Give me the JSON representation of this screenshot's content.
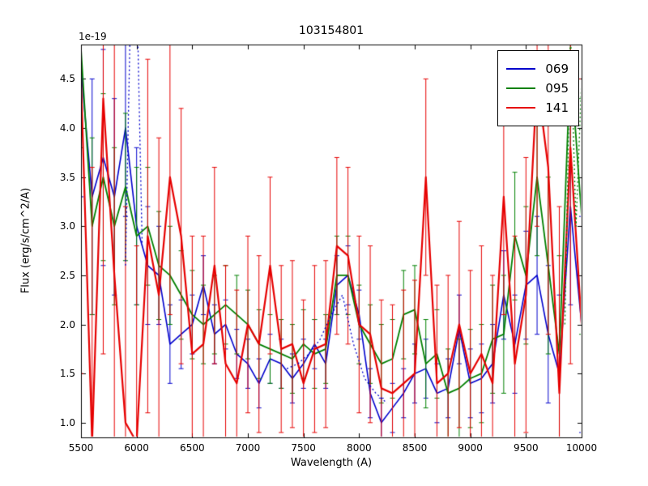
{
  "chart_data": {
    "type": "line",
    "title": "103154801",
    "xlabel": "Wavelength (A)",
    "ylabel": "Flux (erg/s/cm^2/A)",
    "offset_text": "1e-19",
    "xlim": [
      5500,
      10000
    ],
    "ylim": [
      0.85,
      4.85
    ],
    "grid": false,
    "legend_position": "upper right",
    "x_ticks": [
      5500,
      6000,
      6500,
      7000,
      7500,
      8000,
      8500,
      9000,
      9500,
      10000
    ],
    "x_tick_labels": [
      "5500",
      "6000",
      "6500",
      "7000",
      "7500",
      "8000",
      "8500",
      "9000",
      "9500",
      "10000"
    ],
    "y_ticks": [
      1.0,
      1.5,
      2.0,
      2.5,
      3.0,
      3.5,
      4.0,
      4.5
    ],
    "y_tick_labels": [
      "1.0",
      "1.5",
      "2.0",
      "2.5",
      "3.0",
      "3.5",
      "4.0",
      "4.5"
    ],
    "x": [
      5500,
      5600,
      5700,
      5800,
      5900,
      6000,
      6100,
      6200,
      6300,
      6400,
      6500,
      6600,
      6700,
      6800,
      6900,
      7000,
      7100,
      7200,
      7300,
      7400,
      7500,
      7600,
      7700,
      7800,
      7900,
      8000,
      8100,
      8200,
      8300,
      8400,
      8500,
      8600,
      8700,
      8800,
      8900,
      9000,
      9100,
      9200,
      9300,
      9400,
      9500,
      9600,
      9700,
      9800,
      9900,
      10000
    ],
    "series": [
      {
        "name": "069",
        "color": "#0000cc",
        "lw": 1.6,
        "values": [
          4.6,
          3.3,
          3.7,
          3.3,
          4.0,
          3.0,
          2.6,
          2.5,
          1.8,
          1.9,
          2.0,
          2.4,
          1.9,
          2.0,
          1.7,
          1.6,
          1.4,
          1.65,
          1.6,
          1.45,
          1.6,
          1.8,
          1.6,
          2.4,
          2.5,
          2.1,
          1.3,
          1.0,
          1.15,
          1.3,
          1.5,
          1.55,
          1.3,
          1.35,
          1.95,
          1.4,
          1.45,
          1.6,
          2.3,
          1.8,
          2.4,
          2.5,
          1.9,
          1.5,
          3.2,
          2.0
        ],
        "err": [
          1.3,
          1.2,
          1.1,
          1.0,
          0.9,
          0.8,
          0.6,
          0.5,
          0.4,
          0.35,
          0.3,
          0.3,
          0.3,
          0.25,
          0.25,
          0.25,
          0.25,
          0.25,
          0.25,
          0.25,
          0.25,
          0.25,
          0.25,
          0.3,
          0.3,
          0.25,
          0.25,
          0.25,
          0.25,
          0.25,
          0.3,
          0.3,
          0.3,
          0.3,
          0.35,
          0.35,
          0.35,
          0.4,
          0.45,
          0.5,
          0.55,
          0.6,
          0.7,
          0.8,
          1.0,
          1.1
        ]
      },
      {
        "name": "095",
        "color": "#008000",
        "lw": 1.8,
        "values": [
          4.8,
          3.0,
          3.5,
          3.0,
          3.4,
          2.9,
          3.0,
          2.6,
          2.5,
          2.3,
          2.1,
          2.0,
          2.1,
          2.2,
          2.1,
          2.0,
          1.8,
          1.75,
          1.7,
          1.65,
          1.8,
          1.7,
          1.75,
          2.5,
          2.5,
          2.0,
          1.8,
          1.6,
          1.65,
          2.1,
          2.15,
          1.6,
          1.7,
          1.3,
          1.35,
          1.45,
          1.5,
          1.85,
          1.9,
          2.9,
          2.5,
          3.5,
          2.6,
          1.7,
          4.7,
          3.1
        ],
        "err": [
          1.0,
          0.9,
          0.85,
          0.8,
          0.75,
          0.7,
          0.6,
          0.55,
          0.5,
          0.45,
          0.45,
          0.4,
          0.4,
          0.4,
          0.4,
          0.35,
          0.35,
          0.35,
          0.35,
          0.35,
          0.35,
          0.35,
          0.35,
          0.4,
          0.4,
          0.4,
          0.4,
          0.4,
          0.4,
          0.45,
          0.45,
          0.45,
          0.45,
          0.45,
          0.5,
          0.5,
          0.5,
          0.55,
          0.6,
          0.65,
          0.7,
          0.8,
          0.9,
          1.0,
          1.1,
          1.2
        ]
      },
      {
        "name": "141",
        "color": "#e60000",
        "lw": 2.2,
        "values": [
          4.5,
          0.8,
          4.3,
          2.5,
          1.0,
          0.8,
          2.9,
          2.3,
          3.5,
          2.9,
          1.7,
          1.8,
          2.6,
          1.6,
          1.4,
          2.0,
          1.8,
          2.6,
          1.75,
          1.8,
          1.4,
          1.75,
          1.8,
          2.8,
          2.7,
          2.0,
          1.9,
          1.35,
          1.3,
          1.4,
          1.5,
          3.5,
          1.4,
          1.5,
          2.0,
          1.5,
          1.7,
          1.4,
          3.3,
          1.6,
          2.3,
          4.5,
          3.6,
          1.3,
          3.8,
          2.0
        ],
        "err": [
          3.0,
          2.8,
          2.6,
          2.4,
          2.2,
          2.0,
          1.8,
          1.6,
          1.4,
          1.3,
          1.2,
          1.1,
          1.0,
          1.0,
          0.95,
          0.9,
          0.9,
          0.9,
          0.85,
          0.85,
          0.85,
          0.85,
          0.85,
          0.9,
          0.9,
          0.9,
          0.9,
          0.9,
          0.9,
          0.95,
          0.95,
          1.0,
          1.0,
          1.0,
          1.05,
          1.05,
          1.1,
          1.1,
          1.2,
          1.3,
          1.4,
          1.5,
          1.7,
          1.9,
          2.2,
          2.5
        ]
      }
    ],
    "dotted_segments": [
      {
        "color": "#0000cc",
        "x": [
          5900,
          5950,
          6000,
          6050
        ],
        "values": [
          2.6,
          5.5,
          5.5,
          2.8
        ]
      },
      {
        "color": "#0000cc",
        "x": [
          7350,
          7450,
          7550,
          7650,
          7750,
          7850,
          7950,
          8050,
          8150,
          8250
        ],
        "values": [
          1.55,
          1.6,
          1.7,
          1.85,
          2.1,
          2.3,
          1.8,
          1.45,
          1.3,
          1.2
        ]
      },
      {
        "color": "#008000",
        "x": [
          9850,
          9900,
          9950,
          10000
        ],
        "values": [
          2.0,
          5.0,
          3.0,
          4.5
        ]
      }
    ]
  }
}
